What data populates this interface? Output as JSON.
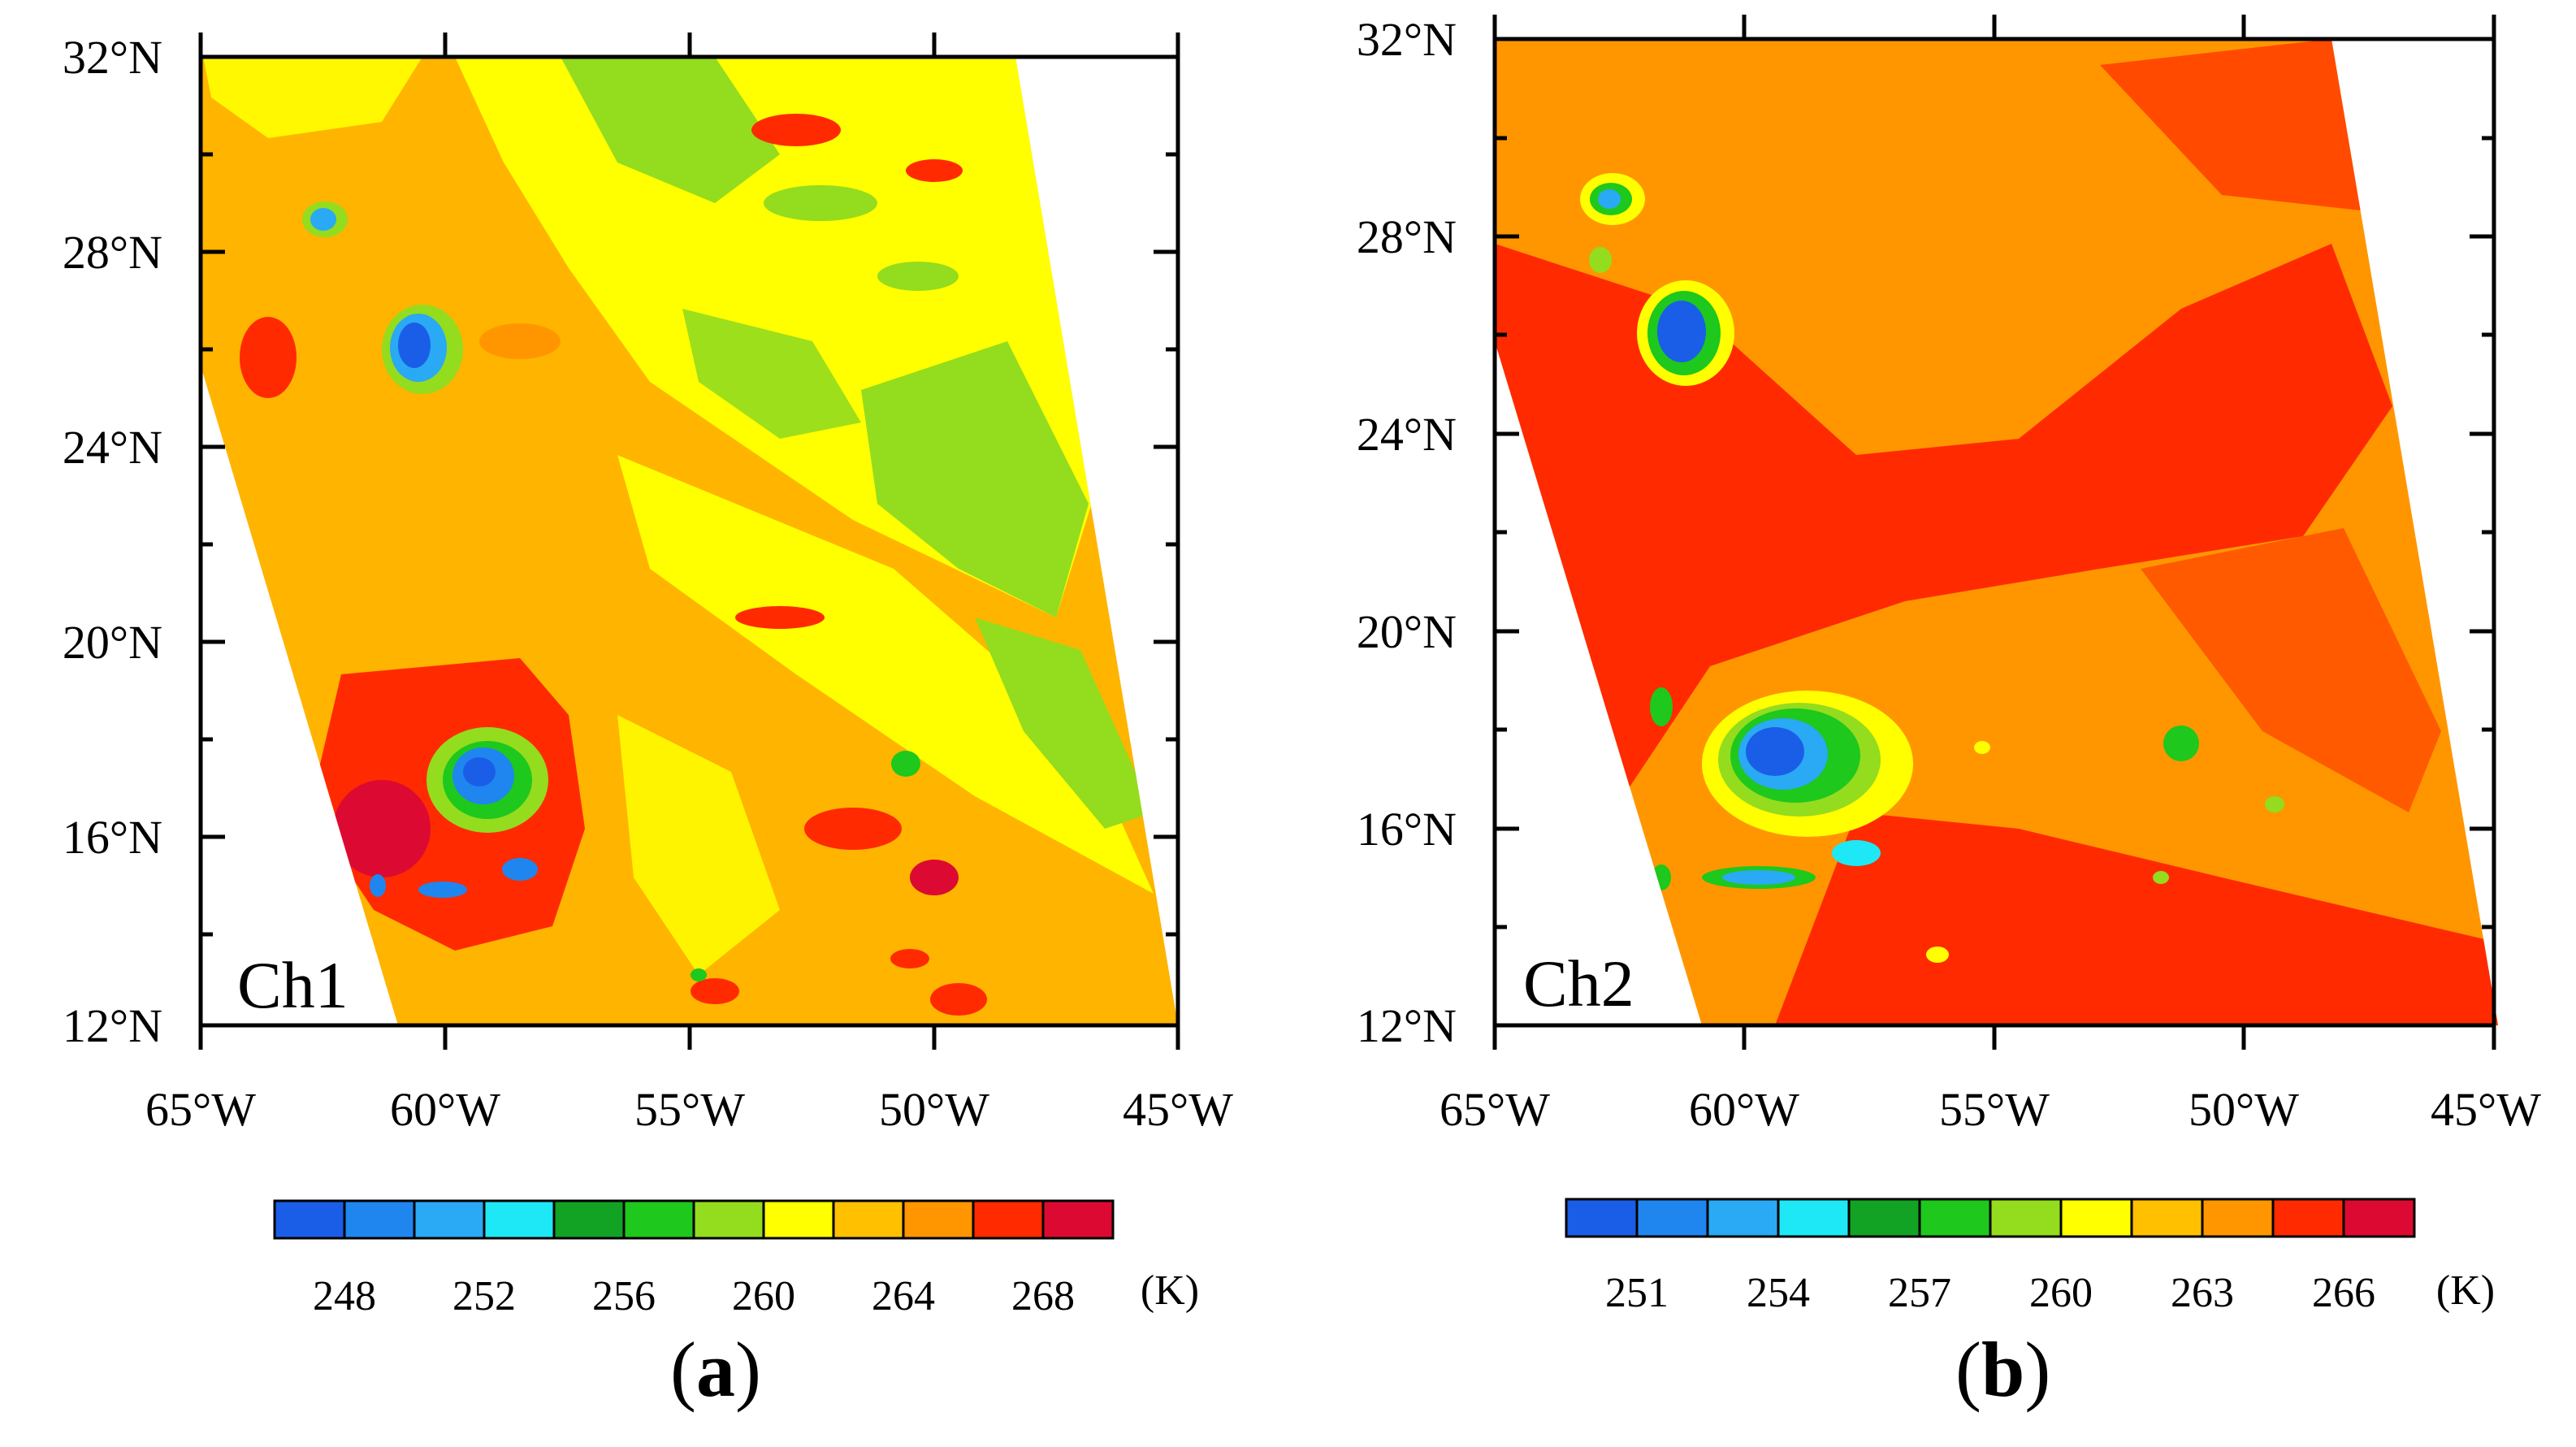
{
  "panels": [
    {
      "id": "a",
      "channel_label": "Ch1",
      "caption_letter": "a",
      "lat_labels": [
        "32°N",
        "28°N",
        "24°N",
        "20°N",
        "16°N",
        "12°N"
      ],
      "lon_labels": [
        "65°W",
        "60°W",
        "55°W",
        "50°W",
        "45°W"
      ],
      "colorbar_ticks": [
        "248",
        "252",
        "256",
        "260",
        "264",
        "268"
      ],
      "unit": "(K)"
    },
    {
      "id": "b",
      "channel_label": "Ch2",
      "caption_letter": "b",
      "lat_labels": [
        "32°N",
        "28°N",
        "24°N",
        "20°N",
        "16°N",
        "12°N"
      ],
      "lon_labels": [
        "65°W",
        "60°W",
        "55°W",
        "50°W",
        "45°W"
      ],
      "colorbar_ticks": [
        "251",
        "254",
        "257",
        "260",
        "263",
        "266"
      ],
      "unit": "(K)"
    }
  ],
  "palette": [
    "#1a5ee8",
    "#1f86f0",
    "#2aa9f4",
    "#1ee8f5",
    "#12a224",
    "#1ec81c",
    "#94dc1e",
    "#ffff00",
    "#ffc000",
    "#ff9600",
    "#ff2a00",
    "#dc0a32"
  ]
}
